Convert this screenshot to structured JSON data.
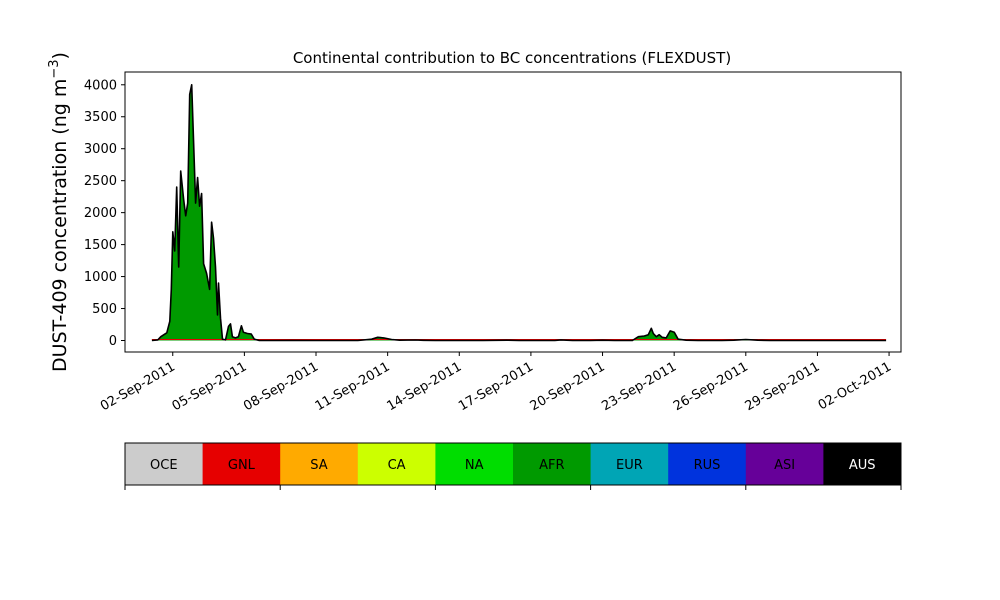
{
  "chart_data": {
    "type": "area",
    "title": "Continental contribution to BC concentrations (FLEXDUST)",
    "ylabel_main": "DUST-409 concentration (ng m",
    "ylabel_sup": "−3",
    "ylabel_close": ")",
    "xlabel": "",
    "ylim": [
      -180,
      4200
    ],
    "xlim": [
      "2011-08-31 00:00",
      "2011-10-02 12:00"
    ],
    "yticks": [
      0,
      500,
      1000,
      1500,
      2000,
      2500,
      3000,
      3500,
      4000
    ],
    "xticks": [
      {
        "date": "2011-09-02",
        "label": "02-Sep-2011"
      },
      {
        "date": "2011-09-05",
        "label": "05-Sep-2011"
      },
      {
        "date": "2011-09-08",
        "label": "08-Sep-2011"
      },
      {
        "date": "2011-09-11",
        "label": "11-Sep-2011"
      },
      {
        "date": "2011-09-14",
        "label": "14-Sep-2011"
      },
      {
        "date": "2011-09-17",
        "label": "17-Sep-2011"
      },
      {
        "date": "2011-09-20",
        "label": "20-Sep-2011"
      },
      {
        "date": "2011-09-23",
        "label": "23-Sep-2011"
      },
      {
        "date": "2011-09-26",
        "label": "26-Sep-2011"
      },
      {
        "date": "2011-09-29",
        "label": "29-Sep-2011"
      },
      {
        "date": "2011-10-02",
        "label": "02-Oct-2011"
      }
    ],
    "series": [
      {
        "name": "AFR",
        "color": "#009a00",
        "points": [
          [
            "2011-09-01 03:00",
            0
          ],
          [
            "2011-09-01 09:00",
            10
          ],
          [
            "2011-09-01 12:00",
            60
          ],
          [
            "2011-09-01 18:00",
            120
          ],
          [
            "2011-09-01 21:00",
            300
          ],
          [
            "2011-09-01 22:30",
            800
          ],
          [
            "2011-09-02 00:00",
            1700
          ],
          [
            "2011-09-02 02:00",
            1400
          ],
          [
            "2011-09-02 04:00",
            2400
          ],
          [
            "2011-09-02 06:00",
            1150
          ],
          [
            "2011-09-02 08:00",
            2650
          ],
          [
            "2011-09-02 11:00",
            2200
          ],
          [
            "2011-09-02 13:00",
            1950
          ],
          [
            "2011-09-02 15:00",
            2150
          ],
          [
            "2011-09-02 17:00",
            3850
          ],
          [
            "2011-09-02 19:00",
            4000
          ],
          [
            "2011-09-02 21:00",
            3100
          ],
          [
            "2011-09-02 23:00",
            2150
          ],
          [
            "2011-09-03 01:00",
            2550
          ],
          [
            "2011-09-03 03:00",
            2100
          ],
          [
            "2011-09-03 05:00",
            2300
          ],
          [
            "2011-09-03 07:00",
            1200
          ],
          [
            "2011-09-03 10:00",
            1050
          ],
          [
            "2011-09-03 13:00",
            800
          ],
          [
            "2011-09-03 15:00",
            1850
          ],
          [
            "2011-09-03 17:00",
            1600
          ],
          [
            "2011-09-03 19:00",
            1150
          ],
          [
            "2011-09-03 21:00",
            400
          ],
          [
            "2011-09-03 22:00",
            900
          ],
          [
            "2011-09-04 00:00",
            350
          ],
          [
            "2011-09-04 02:00",
            20
          ],
          [
            "2011-09-04 05:00",
            10
          ],
          [
            "2011-09-04 08:00",
            220
          ],
          [
            "2011-09-04 10:00",
            260
          ],
          [
            "2011-09-04 12:00",
            60
          ],
          [
            "2011-09-04 15:00",
            40
          ],
          [
            "2011-09-04 18:00",
            60
          ],
          [
            "2011-09-04 21:00",
            230
          ],
          [
            "2011-09-04 23:00",
            130
          ],
          [
            "2011-09-05 03:00",
            110
          ],
          [
            "2011-09-05 07:00",
            100
          ],
          [
            "2011-09-05 10:00",
            20
          ],
          [
            "2011-09-05 15:00",
            0
          ],
          [
            "2011-09-06 00:00",
            0
          ],
          [
            "2011-09-07 00:00",
            2
          ],
          [
            "2011-09-08 00:00",
            0
          ],
          [
            "2011-09-09 18:00",
            0
          ],
          [
            "2011-09-10 08:00",
            20
          ],
          [
            "2011-09-10 14:00",
            50
          ],
          [
            "2011-09-10 20:00",
            40
          ],
          [
            "2011-09-11 04:00",
            15
          ],
          [
            "2011-09-11 12:00",
            5
          ],
          [
            "2011-09-12 04:00",
            8
          ],
          [
            "2011-09-12 12:00",
            3
          ],
          [
            "2011-09-13 00:00",
            0
          ],
          [
            "2011-09-14 00:00",
            0
          ],
          [
            "2011-09-15 00:00",
            0
          ],
          [
            "2011-09-16 00:00",
            5
          ],
          [
            "2011-09-16 12:00",
            0
          ],
          [
            "2011-09-17 12:00",
            0
          ],
          [
            "2011-09-18 00:00",
            0
          ],
          [
            "2011-09-18 06:00",
            10
          ],
          [
            "2011-09-18 18:00",
            0
          ],
          [
            "2011-09-19 12:00",
            0
          ],
          [
            "2011-09-20 00:00",
            5
          ],
          [
            "2011-09-20 12:00",
            0
          ],
          [
            "2011-09-21 06:00",
            0
          ],
          [
            "2011-09-21 12:00",
            60
          ],
          [
            "2011-09-21 18:00",
            70
          ],
          [
            "2011-09-21 22:00",
            90
          ],
          [
            "2011-09-22 01:00",
            190
          ],
          [
            "2011-09-22 03:00",
            110
          ],
          [
            "2011-09-22 06:00",
            60
          ],
          [
            "2011-09-22 09:00",
            90
          ],
          [
            "2011-09-22 12:00",
            50
          ],
          [
            "2011-09-22 16:00",
            40
          ],
          [
            "2011-09-22 20:00",
            150
          ],
          [
            "2011-09-23 00:00",
            130
          ],
          [
            "2011-09-23 04:00",
            20
          ],
          [
            "2011-09-23 12:00",
            5
          ],
          [
            "2011-09-24 00:00",
            0
          ],
          [
            "2011-09-25 00:00",
            0
          ],
          [
            "2011-09-25 12:00",
            5
          ],
          [
            "2011-09-26 00:00",
            15
          ],
          [
            "2011-09-26 12:00",
            5
          ],
          [
            "2011-09-27 00:00",
            0
          ],
          [
            "2011-09-28 00:00",
            0
          ],
          [
            "2011-09-29 00:00",
            0
          ],
          [
            "2011-09-30 00:00",
            0
          ],
          [
            "2011-10-01 00:00",
            0
          ],
          [
            "2011-10-01 21:00",
            0
          ]
        ]
      }
    ],
    "legend": [
      {
        "label": "OCE",
        "color": "#cccccc",
        "text_color": "#000000"
      },
      {
        "label": "GNL",
        "color": "#e60000",
        "text_color": "#000000"
      },
      {
        "label": "SA",
        "color": "#ffaa00",
        "text_color": "#000000"
      },
      {
        "label": "CA",
        "color": "#ccff00",
        "text_color": "#000000"
      },
      {
        "label": "NA",
        "color": "#00dd00",
        "text_color": "#000000"
      },
      {
        "label": "AFR",
        "color": "#009a00",
        "text_color": "#000000"
      },
      {
        "label": "EUR",
        "color": "#00a5b5",
        "text_color": "#000000"
      },
      {
        "label": "RUS",
        "color": "#0033dd",
        "text_color": "#000000"
      },
      {
        "label": "ASI",
        "color": "#660099",
        "text_color": "#000000"
      },
      {
        "label": "AUS",
        "color": "#000000",
        "text_color": "#ffffff"
      }
    ]
  }
}
